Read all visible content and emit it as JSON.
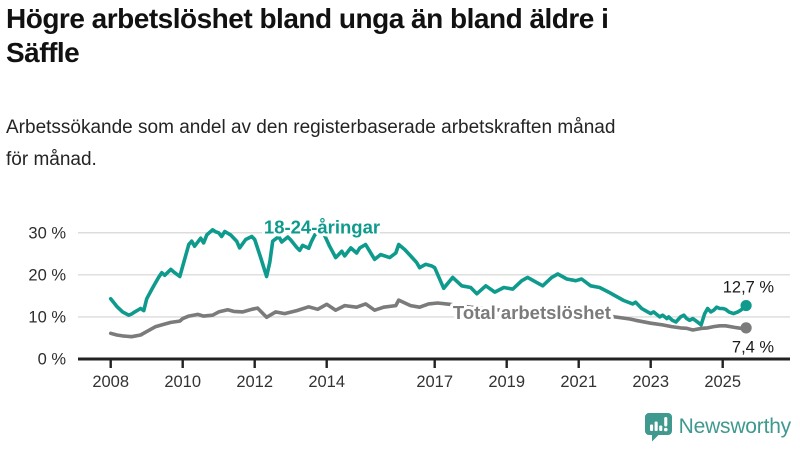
{
  "header": {
    "title": "Högre arbetslöshet bland unga än bland äldre i\nSäffle",
    "subtitle": "Arbetssökande som andel av den registerbaserade arbetskraften månad\nför månad."
  },
  "footer": {
    "brand": "Newsworthy",
    "logo_icon": "newsworthy-speech-bubble-bar-chart-icon"
  },
  "colors": {
    "young_line": "#0e9b8d",
    "total_line": "#7b7b7b",
    "axis": "#222222",
    "grid": "#dcdcdc",
    "tick_text": "#2d2d2d",
    "value_text": "#1a1a1a",
    "brand": "#3f998e"
  },
  "chart_data": {
    "type": "line",
    "title": "",
    "xlabel": "",
    "ylabel": "",
    "grid": "horizontal",
    "legend_position": "inline-labels",
    "xlim": [
      2007.1,
      2026.9
    ],
    "ylim": [
      0,
      33
    ],
    "x_ticks": [
      2008,
      2010,
      2012,
      2014,
      2017,
      2019,
      2021,
      2023,
      2025
    ],
    "y_ticks": [
      0,
      10,
      20,
      30
    ],
    "y_tick_labels": [
      "0 %",
      "10 %",
      "20 %",
      "30 %"
    ],
    "series": [
      {
        "name": "18-24-åringar",
        "color": "#0e9b8d",
        "end_label": "12,7 %",
        "label_at": {
          "year": 2013.87,
          "value": 31.2
        },
        "points": [
          [
            2008.0,
            14.3
          ],
          [
            2008.17,
            12.5
          ],
          [
            2008.33,
            11.2
          ],
          [
            2008.5,
            10.4
          ],
          [
            2008.58,
            10.7
          ],
          [
            2008.67,
            11.2
          ],
          [
            2008.83,
            12.0
          ],
          [
            2008.92,
            11.5
          ],
          [
            2009.0,
            14.3
          ],
          [
            2009.17,
            17.0
          ],
          [
            2009.33,
            19.4
          ],
          [
            2009.42,
            20.5
          ],
          [
            2009.5,
            19.9
          ],
          [
            2009.67,
            21.3
          ],
          [
            2009.75,
            20.7
          ],
          [
            2009.92,
            19.6
          ],
          [
            2010.08,
            24.5
          ],
          [
            2010.17,
            27.2
          ],
          [
            2010.25,
            28.0
          ],
          [
            2010.33,
            26.8
          ],
          [
            2010.5,
            28.7
          ],
          [
            2010.58,
            27.6
          ],
          [
            2010.67,
            29.5
          ],
          [
            2010.83,
            30.7
          ],
          [
            2010.92,
            30.2
          ],
          [
            2011.0,
            30.0
          ],
          [
            2011.08,
            29.1
          ],
          [
            2011.17,
            30.3
          ],
          [
            2011.33,
            29.5
          ],
          [
            2011.5,
            28.0
          ],
          [
            2011.58,
            26.4
          ],
          [
            2011.75,
            28.4
          ],
          [
            2011.92,
            29.1
          ],
          [
            2012.0,
            28.4
          ],
          [
            2012.17,
            24.0
          ],
          [
            2012.33,
            19.6
          ],
          [
            2012.42,
            23.0
          ],
          [
            2012.5,
            28.0
          ],
          [
            2012.67,
            29.1
          ],
          [
            2012.75,
            27.8
          ],
          [
            2012.92,
            29.0
          ],
          [
            2013.0,
            28.3
          ],
          [
            2013.17,
            26.5
          ],
          [
            2013.25,
            25.8
          ],
          [
            2013.33,
            27.0
          ],
          [
            2013.5,
            26.3
          ],
          [
            2013.58,
            28.0
          ],
          [
            2013.67,
            29.5
          ],
          [
            2013.83,
            30.8
          ],
          [
            2013.92,
            29.8
          ],
          [
            2014.08,
            26.8
          ],
          [
            2014.25,
            24.1
          ],
          [
            2014.42,
            25.6
          ],
          [
            2014.5,
            24.5
          ],
          [
            2014.67,
            26.4
          ],
          [
            2014.83,
            25.2
          ],
          [
            2014.92,
            26.4
          ],
          [
            2015.08,
            27.2
          ],
          [
            2015.25,
            24.8
          ],
          [
            2015.33,
            23.7
          ],
          [
            2015.5,
            24.8
          ],
          [
            2015.75,
            24.1
          ],
          [
            2015.92,
            25.2
          ],
          [
            2016.0,
            27.2
          ],
          [
            2016.17,
            26.0
          ],
          [
            2016.33,
            24.5
          ],
          [
            2016.5,
            22.9
          ],
          [
            2016.58,
            21.7
          ],
          [
            2016.75,
            22.5
          ],
          [
            2016.92,
            22.1
          ],
          [
            2017.0,
            21.7
          ],
          [
            2017.25,
            16.8
          ],
          [
            2017.5,
            19.4
          ],
          [
            2017.75,
            17.4
          ],
          [
            2018.0,
            17.0
          ],
          [
            2018.17,
            15.5
          ],
          [
            2018.42,
            17.4
          ],
          [
            2018.67,
            15.9
          ],
          [
            2018.92,
            17.0
          ],
          [
            2019.17,
            16.6
          ],
          [
            2019.42,
            18.6
          ],
          [
            2019.58,
            19.4
          ],
          [
            2019.83,
            18.2
          ],
          [
            2020.0,
            17.4
          ],
          [
            2020.25,
            19.4
          ],
          [
            2020.42,
            20.2
          ],
          [
            2020.67,
            19.0
          ],
          [
            2020.92,
            18.6
          ],
          [
            2021.08,
            19.0
          ],
          [
            2021.33,
            17.4
          ],
          [
            2021.58,
            17.0
          ],
          [
            2021.83,
            15.9
          ],
          [
            2022.0,
            15.1
          ],
          [
            2022.25,
            13.9
          ],
          [
            2022.5,
            13.1
          ],
          [
            2022.58,
            13.5
          ],
          [
            2022.75,
            12.0
          ],
          [
            2022.83,
            11.6
          ],
          [
            2023.0,
            10.8
          ],
          [
            2023.08,
            11.2
          ],
          [
            2023.25,
            10.0
          ],
          [
            2023.33,
            10.4
          ],
          [
            2023.45,
            9.6
          ],
          [
            2023.5,
            10.0
          ],
          [
            2023.6,
            9.2
          ],
          [
            2023.7,
            8.8
          ],
          [
            2023.83,
            10.0
          ],
          [
            2023.92,
            10.4
          ],
          [
            2024.0,
            9.6
          ],
          [
            2024.08,
            9.2
          ],
          [
            2024.17,
            9.6
          ],
          [
            2024.3,
            8.8
          ],
          [
            2024.4,
            8.1
          ],
          [
            2024.5,
            10.8
          ],
          [
            2024.58,
            12.0
          ],
          [
            2024.67,
            11.2
          ],
          [
            2024.75,
            11.6
          ],
          [
            2024.83,
            12.3
          ],
          [
            2024.92,
            12.0
          ],
          [
            2025.0,
            12.0
          ],
          [
            2025.08,
            11.8
          ],
          [
            2025.17,
            11.2
          ],
          [
            2025.3,
            10.8
          ],
          [
            2025.42,
            11.2
          ],
          [
            2025.5,
            11.6
          ],
          [
            2025.65,
            12.7
          ]
        ]
      },
      {
        "name": "Total arbetslöshet",
        "color": "#7b7b7b",
        "end_label": "7,4 %",
        "label_at": {
          "year": 2019.7,
          "value": 10.9
        },
        "points": [
          [
            2008.0,
            6.1
          ],
          [
            2008.17,
            5.7
          ],
          [
            2008.33,
            5.5
          ],
          [
            2008.58,
            5.3
          ],
          [
            2008.83,
            5.7
          ],
          [
            2009.0,
            6.5
          ],
          [
            2009.25,
            7.7
          ],
          [
            2009.42,
            8.1
          ],
          [
            2009.67,
            8.7
          ],
          [
            2009.92,
            9.0
          ],
          [
            2010.0,
            9.6
          ],
          [
            2010.17,
            10.2
          ],
          [
            2010.42,
            10.6
          ],
          [
            2010.58,
            10.2
          ],
          [
            2010.83,
            10.4
          ],
          [
            2011.0,
            11.2
          ],
          [
            2011.25,
            11.7
          ],
          [
            2011.42,
            11.3
          ],
          [
            2011.67,
            11.2
          ],
          [
            2011.92,
            11.8
          ],
          [
            2012.08,
            12.1
          ],
          [
            2012.33,
            9.9
          ],
          [
            2012.58,
            11.2
          ],
          [
            2012.83,
            10.8
          ],
          [
            2013.17,
            11.5
          ],
          [
            2013.5,
            12.4
          ],
          [
            2013.75,
            11.8
          ],
          [
            2014.0,
            13.0
          ],
          [
            2014.25,
            11.6
          ],
          [
            2014.5,
            12.7
          ],
          [
            2014.83,
            12.3
          ],
          [
            2015.08,
            13.1
          ],
          [
            2015.33,
            11.6
          ],
          [
            2015.58,
            12.3
          ],
          [
            2015.92,
            12.7
          ],
          [
            2016.0,
            14.0
          ],
          [
            2016.33,
            12.7
          ],
          [
            2016.58,
            12.3
          ],
          [
            2016.83,
            13.1
          ],
          [
            2017.08,
            13.3
          ],
          [
            2017.42,
            13.0
          ],
          [
            2017.75,
            12.6
          ],
          [
            2018.0,
            12.3
          ],
          [
            2018.42,
            12.0
          ],
          [
            2018.83,
            11.6
          ],
          [
            2019.17,
            11.3
          ],
          [
            2019.58,
            11.0
          ],
          [
            2020.0,
            11.2
          ],
          [
            2020.42,
            11.8
          ],
          [
            2020.83,
            11.5
          ],
          [
            2021.17,
            11.0
          ],
          [
            2021.58,
            10.5
          ],
          [
            2022.0,
            10.0
          ],
          [
            2022.42,
            9.5
          ],
          [
            2022.58,
            9.2
          ],
          [
            2023.0,
            8.5
          ],
          [
            2023.33,
            8.1
          ],
          [
            2023.58,
            7.7
          ],
          [
            2023.83,
            7.4
          ],
          [
            2024.0,
            7.3
          ],
          [
            2024.17,
            6.9
          ],
          [
            2024.42,
            7.3
          ],
          [
            2024.58,
            7.4
          ],
          [
            2024.75,
            7.7
          ],
          [
            2024.92,
            7.9
          ],
          [
            2025.08,
            7.9
          ],
          [
            2025.33,
            7.5
          ],
          [
            2025.5,
            7.3
          ],
          [
            2025.65,
            7.4
          ]
        ]
      }
    ]
  }
}
